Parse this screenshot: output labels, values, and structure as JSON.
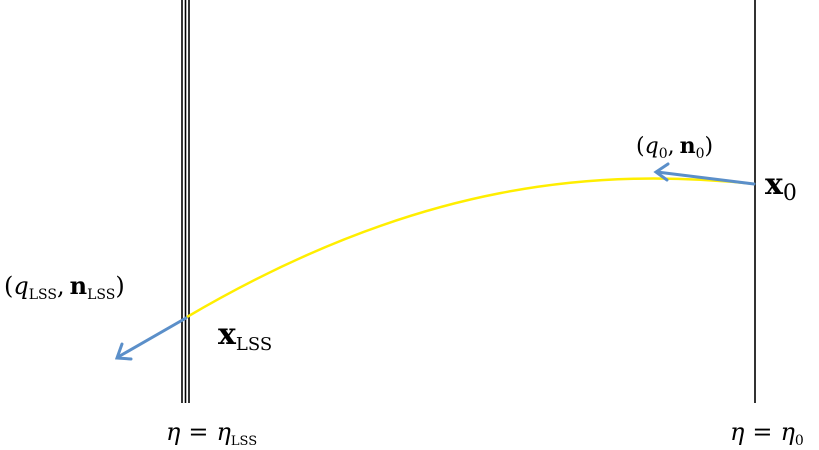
{
  "diagram": {
    "colors": {
      "background": "#ffffff",
      "boundary_lines": "#000000",
      "trajectory": "#ffee00",
      "arrows": "#5b8fc9",
      "text": "#000000"
    },
    "labels": {
      "q0": "q",
      "q0_sub": "0",
      "n0": "n",
      "n0_sub": "0",
      "x0": "x",
      "x0_sub": "0",
      "q_lss": "q",
      "q_lss_sub": "LSS",
      "n_lss": "n",
      "n_lss_sub": "LSS",
      "x_lss": "x",
      "x_lss_sub": "LSS",
      "eta_lss_lhs": "η",
      "eta_lss_rhs": "η",
      "eta_lss_rhs_sub": "LSS",
      "eta0_lhs": "η",
      "eta0_rhs": "η",
      "eta0_rhs_sub": "0",
      "equals": "=",
      "open_paren": "(",
      "close_paren": ")",
      "comma": ","
    },
    "icons": [
      "direction-arrow-icon",
      "direction-arrow-icon"
    ]
  }
}
